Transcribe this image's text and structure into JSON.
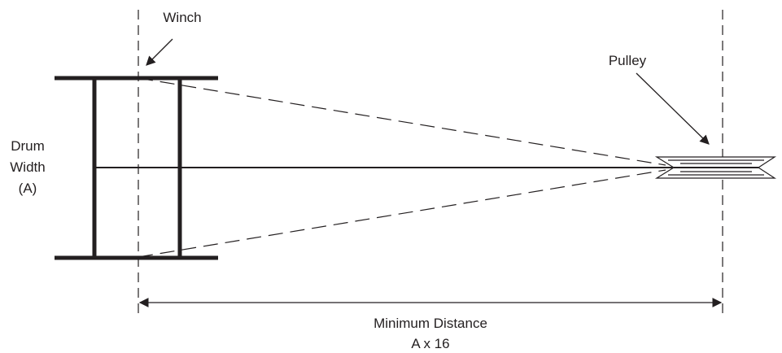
{
  "labels": {
    "winch": "Winch",
    "pulley": "Pulley",
    "drum_width_line1": "Drum",
    "drum_width_line2": "Width",
    "drum_width_line3": "(A)",
    "distance_line1": "Minimum Distance",
    "distance_line2": "A x 16"
  },
  "colors": {
    "ink": "#231f20",
    "background": "#ffffff"
  }
}
